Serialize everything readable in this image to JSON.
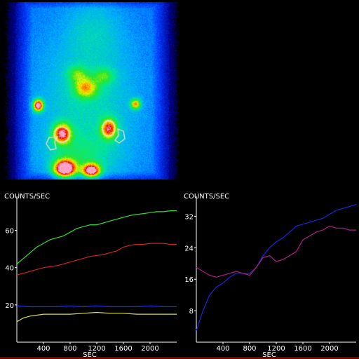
{
  "image": {
    "description_icon": "scintigraphy-scan",
    "roi_color": "#f0e0c8"
  },
  "chart_data": [
    {
      "type": "line",
      "ylabel": "COUNTS/SEC",
      "xlabel": "SEC",
      "xlim": [
        0,
        2400
      ],
      "ylim": [
        0,
        76
      ],
      "x_ticks": [
        400,
        800,
        1200,
        1600,
        2000
      ],
      "y_ticks": [
        20,
        40,
        60
      ],
      "series": [
        {
          "color": "#33dd33",
          "x": [
            0,
            100,
            200,
            300,
            400,
            500,
            600,
            700,
            800,
            900,
            1000,
            1100,
            1200,
            1300,
            1400,
            1500,
            1600,
            1700,
            1800,
            1900,
            2000,
            2100,
            2200,
            2300,
            2400
          ],
          "y": [
            42,
            45,
            48,
            51,
            53,
            55,
            56,
            57,
            59,
            61,
            62,
            63,
            63,
            64,
            65,
            66,
            67,
            68,
            68.5,
            69,
            69.5,
            70,
            70,
            70.5,
            70.5
          ]
        },
        {
          "color": "#cc2222",
          "x": [
            0,
            100,
            200,
            300,
            400,
            500,
            600,
            700,
            800,
            900,
            1000,
            1100,
            1200,
            1300,
            1400,
            1500,
            1600,
            1700,
            1800,
            1900,
            2000,
            2100,
            2200,
            2300,
            2400
          ],
          "y": [
            36,
            37,
            38,
            39,
            40,
            40.5,
            41,
            42,
            43,
            44,
            45,
            46,
            46.5,
            47,
            48,
            49,
            51,
            52,
            52.5,
            52.5,
            53,
            53,
            53,
            52.5,
            52.5
          ]
        },
        {
          "color": "#2233dd",
          "x": [
            0,
            200,
            400,
            600,
            800,
            1000,
            1200,
            1400,
            1600,
            1800,
            2000,
            2200,
            2400
          ],
          "y": [
            19.5,
            19,
            19,
            19,
            19.5,
            19,
            19.5,
            19,
            19,
            19,
            19.5,
            19,
            19
          ]
        },
        {
          "color": "#dddd44",
          "x": [
            0,
            100,
            200,
            300,
            400,
            600,
            800,
            1000,
            1200,
            1400,
            1600,
            1800,
            2000,
            2200,
            2400
          ],
          "y": [
            11,
            13,
            14,
            14.5,
            15,
            15,
            15,
            15.5,
            16,
            15.5,
            15.5,
            15,
            15,
            15,
            15
          ]
        }
      ]
    },
    {
      "type": "line",
      "ylabel": "COUNTS/SEC",
      "xlabel": "SEC",
      "xlim": [
        0,
        2400
      ],
      "ylim": [
        0,
        36
      ],
      "x_ticks": [
        400,
        800,
        1200,
        1600,
        2000
      ],
      "y_ticks": [
        8,
        16,
        24,
        32
      ],
      "series": [
        {
          "color": "#2222dd",
          "x": [
            0,
            100,
            200,
            300,
            400,
            500,
            600,
            700,
            800,
            900,
            1000,
            1100,
            1200,
            1300,
            1400,
            1500,
            1600,
            1700,
            1800,
            1900,
            2000,
            2100,
            2200,
            2300,
            2400
          ],
          "y": [
            3,
            8,
            12,
            14,
            15,
            16.5,
            17.5,
            17.5,
            17.5,
            19,
            22,
            24,
            25.5,
            26.5,
            28,
            29.5,
            30,
            30.5,
            31,
            31.5,
            32.5,
            33.5,
            34,
            34.5,
            35
          ]
        },
        {
          "color": "#aa2288",
          "x": [
            0,
            100,
            200,
            300,
            400,
            500,
            600,
            700,
            800,
            900,
            1000,
            1100,
            1200,
            1300,
            1400,
            1500,
            1600,
            1700,
            1800,
            1900,
            2000,
            2100,
            2200,
            2300,
            2400
          ],
          "y": [
            19,
            18,
            17,
            16.5,
            17,
            17.5,
            18,
            17.5,
            17,
            19,
            21.5,
            22,
            20.5,
            21,
            22,
            23,
            26,
            27,
            28,
            28.5,
            29.5,
            29,
            29,
            28.5,
            28.5
          ]
        }
      ]
    }
  ]
}
